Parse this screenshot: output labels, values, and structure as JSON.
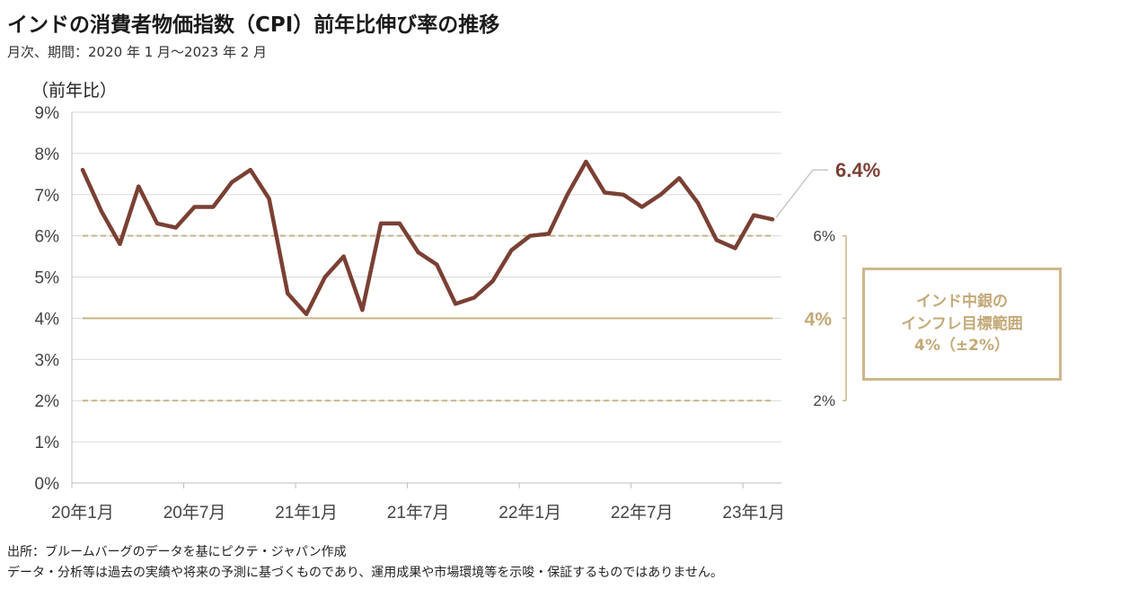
{
  "title": "インドの消費者物価指数（CPI）前年比伸び率の推移",
  "subtitle": "月次、期間：2020 年 1 月～2023 年 2 月",
  "footer": {
    "source": "出所：ブルームバーグのデータを基にピクテ・ジャパン作成",
    "disclaimer": "データ・分析等は過去の実績や将来の予測に基づくものであり、運用成果や市場環境等を示唆・保証するものではありません。"
  },
  "target_box": {
    "line1": "インド中銀の",
    "line2": "インフレ目標範囲",
    "line3": "4%（±2%）"
  },
  "colors": {
    "series": "#7a4034",
    "target_line": "#c8b48a",
    "grid": "#d9d9d9",
    "axis_text": "#444444"
  },
  "chart_data": {
    "type": "line",
    "ylabel": "（前年比）",
    "ylim": [
      0,
      9
    ],
    "yticks": [
      "0%",
      "1%",
      "2%",
      "3%",
      "4%",
      "5%",
      "6%",
      "7%",
      "8%",
      "9%"
    ],
    "grid": true,
    "x": [
      "2020-01",
      "2020-02",
      "2020-03",
      "2020-04",
      "2020-05",
      "2020-06",
      "2020-07",
      "2020-08",
      "2020-09",
      "2020-10",
      "2020-11",
      "2020-12",
      "2021-01",
      "2021-02",
      "2021-03",
      "2021-04",
      "2021-05",
      "2021-06",
      "2021-07",
      "2021-08",
      "2021-09",
      "2021-10",
      "2021-11",
      "2021-12",
      "2022-01",
      "2022-02",
      "2022-03",
      "2022-04",
      "2022-05",
      "2022-06",
      "2022-07",
      "2022-08",
      "2022-09",
      "2022-10",
      "2022-11",
      "2022-12",
      "2023-01",
      "2023-02"
    ],
    "xticks": [
      {
        "index": 0,
        "label": "20年1月"
      },
      {
        "index": 6,
        "label": "20年7月"
      },
      {
        "index": 12,
        "label": "21年1月"
      },
      {
        "index": 18,
        "label": "21年7月"
      },
      {
        "index": 24,
        "label": "22年1月"
      },
      {
        "index": 30,
        "label": "22年7月"
      },
      {
        "index": 36,
        "label": "23年1月"
      }
    ],
    "series": [
      {
        "values": [
          7.6,
          6.6,
          5.8,
          7.2,
          6.3,
          6.2,
          6.7,
          6.7,
          7.3,
          7.6,
          6.9,
          4.6,
          4.1,
          5.0,
          5.5,
          4.2,
          6.3,
          6.3,
          5.6,
          5.3,
          4.35,
          4.5,
          4.9,
          5.65,
          6.0,
          6.05,
          7.0,
          7.8,
          7.05,
          7.0,
          6.7,
          7.0,
          7.4,
          6.8,
          5.9,
          5.7,
          6.5,
          6.4
        ]
      }
    ],
    "reference_lines": [
      {
        "value": 6,
        "style": "dashed"
      },
      {
        "value": 4,
        "style": "solid"
      },
      {
        "value": 2,
        "style": "dashed"
      }
    ],
    "annotations": [
      {
        "text": "6.4%",
        "target": "last-point"
      },
      {
        "text": "6%",
        "value": 6
      },
      {
        "text": "4%",
        "value": 4
      },
      {
        "text": "2%",
        "value": 2
      }
    ]
  }
}
